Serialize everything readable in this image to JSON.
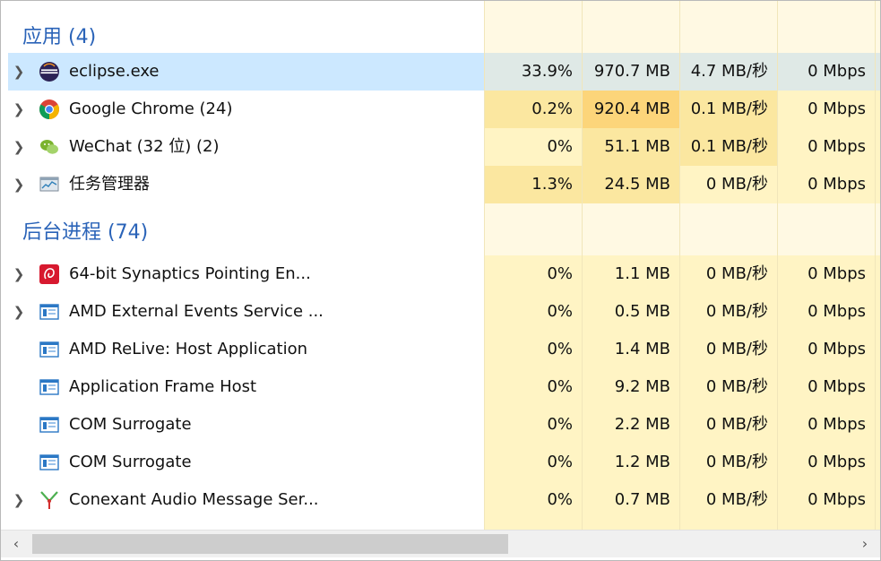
{
  "groups": {
    "apps": {
      "title": "应用 (4)"
    },
    "background": {
      "title": "后台进程 (74)"
    }
  },
  "rows": [
    {
      "name": "eclipse.exe",
      "icon": "eclipse-icon",
      "cpu": "33.9%",
      "mem": "970.7 MB",
      "disk": "4.7 MB/秒",
      "net": "0 Mbps",
      "expandable": true,
      "selected": true
    },
    {
      "name": "Google Chrome (24)",
      "icon": "chrome-icon",
      "cpu": "0.2%",
      "mem": "920.4 MB",
      "disk": "0.1 MB/秒",
      "net": "0 Mbps",
      "expandable": true
    },
    {
      "name": "WeChat (32 位) (2)",
      "icon": "wechat-icon",
      "cpu": "0%",
      "mem": "51.1 MB",
      "disk": "0.1 MB/秒",
      "net": "0 Mbps",
      "expandable": true
    },
    {
      "name": "任务管理器",
      "icon": "task-manager-icon",
      "cpu": "1.3%",
      "mem": "24.5 MB",
      "disk": "0 MB/秒",
      "net": "0 Mbps",
      "expandable": true
    },
    {
      "name": "64-bit Synaptics Pointing En...",
      "icon": "synaptics-icon",
      "cpu": "0%",
      "mem": "1.1 MB",
      "disk": "0 MB/秒",
      "net": "0 Mbps",
      "expandable": true
    },
    {
      "name": "AMD External Events Service ...",
      "icon": "service-window-icon",
      "cpu": "0%",
      "mem": "0.5 MB",
      "disk": "0 MB/秒",
      "net": "0 Mbps",
      "expandable": true
    },
    {
      "name": "AMD ReLive: Host Application",
      "icon": "service-window-icon",
      "cpu": "0%",
      "mem": "1.4 MB",
      "disk": "0 MB/秒",
      "net": "0 Mbps",
      "expandable": false
    },
    {
      "name": "Application Frame Host",
      "icon": "service-window-icon",
      "cpu": "0%",
      "mem": "9.2 MB",
      "disk": "0 MB/秒",
      "net": "0 Mbps",
      "expandable": false
    },
    {
      "name": "COM Surrogate",
      "icon": "service-window-icon",
      "cpu": "0%",
      "mem": "2.2 MB",
      "disk": "0 MB/秒",
      "net": "0 Mbps",
      "expandable": false
    },
    {
      "name": "COM Surrogate",
      "icon": "service-window-icon",
      "cpu": "0%",
      "mem": "1.2 MB",
      "disk": "0 MB/秒",
      "net": "0 Mbps",
      "expandable": false
    },
    {
      "name": "Conexant Audio Message Ser...",
      "icon": "conexant-icon",
      "cpu": "0%",
      "mem": "0.7 MB",
      "disk": "0 MB/秒",
      "net": "0 Mbps",
      "expandable": true
    }
  ],
  "scrollbar": {
    "left_arrow": "‹",
    "right_arrow": "›"
  },
  "colors": {
    "group_title": "#2a63b8",
    "selected_row": "#cce8ff",
    "heat_light": "#fff4c4",
    "heat_high": "#fcd57a"
  }
}
